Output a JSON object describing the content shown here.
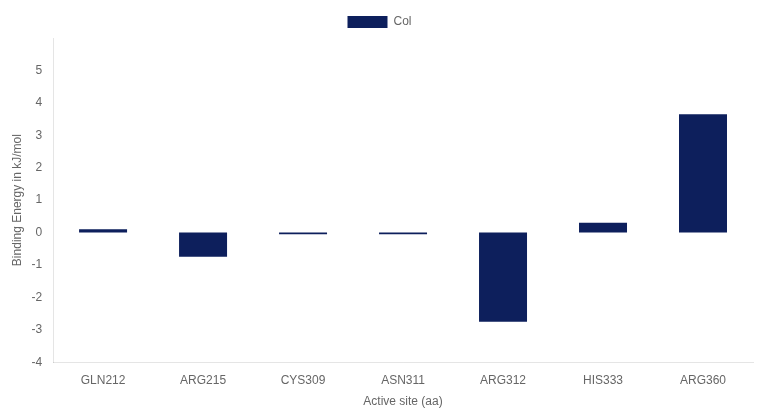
{
  "chart_data": {
    "type": "bar",
    "categories": [
      "GLN212",
      "ARG215",
      "CYS309",
      "ASN311",
      "ARG312",
      "HIS333",
      "ARG360"
    ],
    "series": [
      {
        "name": "Col",
        "color": "#0d1f5c",
        "values": [
          0.1,
          -0.75,
          -0.05,
          -0.05,
          -2.75,
          0.3,
          3.65
        ]
      }
    ],
    "xlabel": "Active site (aa)",
    "ylabel": "Binding Energy in kJ/mol",
    "ylim": [
      -4,
      6
    ],
    "yticks": [
      -4,
      -3,
      -2,
      -1,
      0,
      1,
      2,
      3,
      4,
      5
    ],
    "grid": false,
    "legend": "top"
  }
}
